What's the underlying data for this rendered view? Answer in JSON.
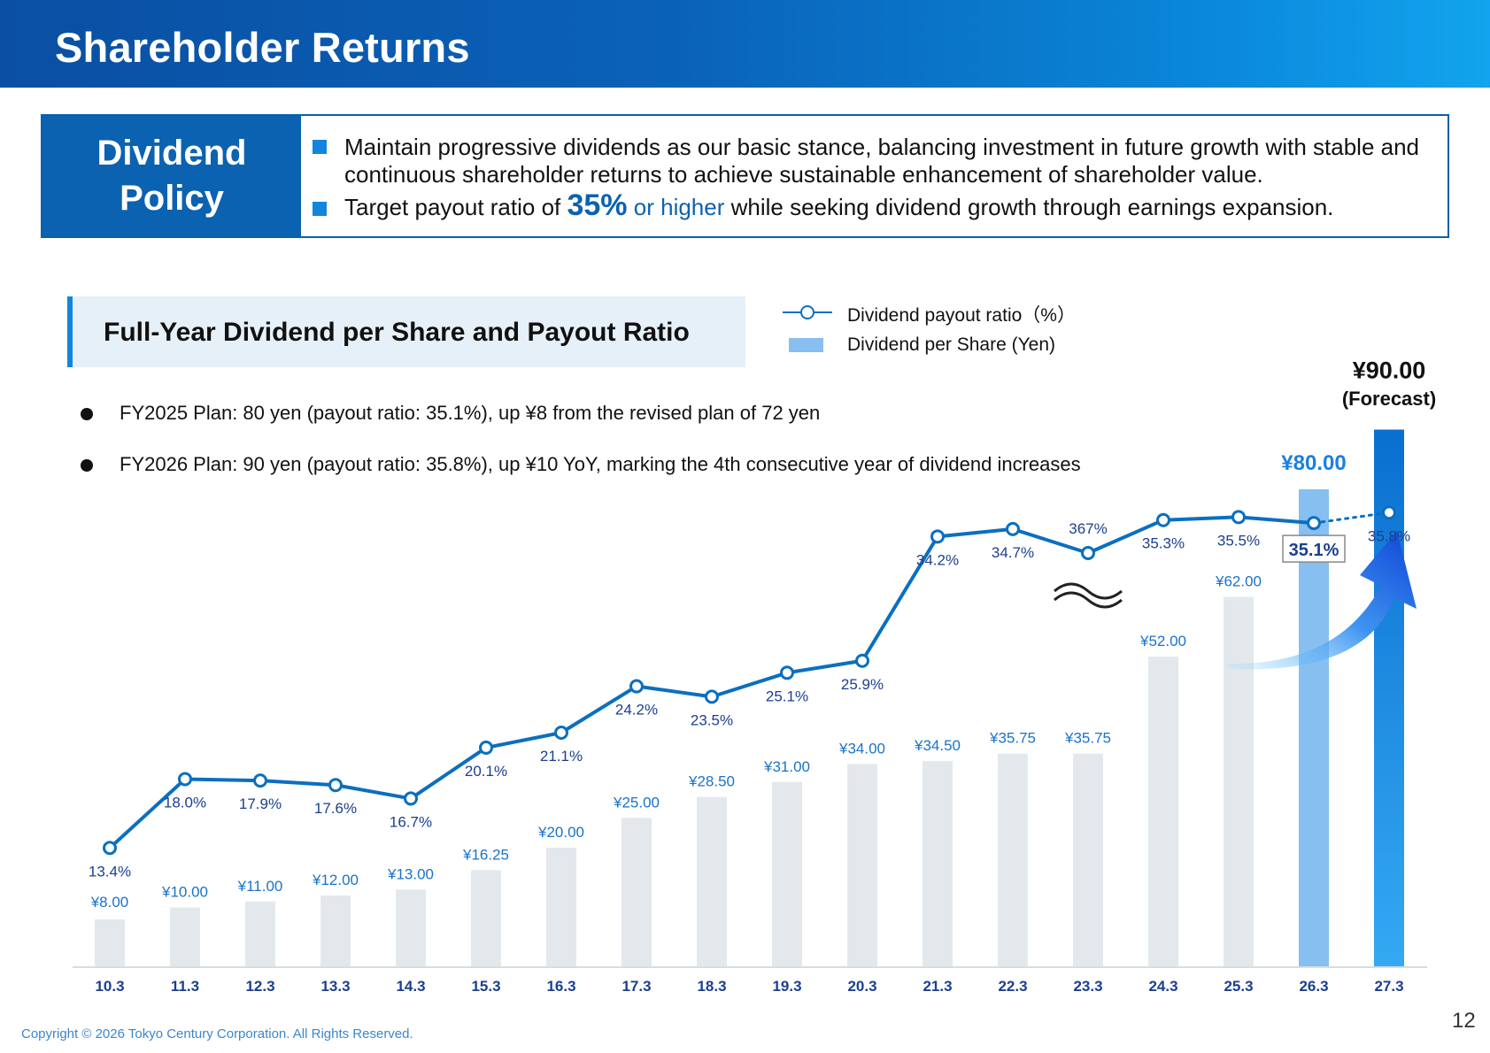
{
  "header": {
    "title": "Shareholder Returns"
  },
  "policy": {
    "label_line1": "Dividend",
    "label_line2": "Policy",
    "line1": "Maintain progressive dividends as our basic stance, balancing investment in future growth with stable and continuous shareholder returns to achieve sustainable enhancement of shareholder value.",
    "line2_pre": "Target payout ratio of ",
    "line2_pct": "35%",
    "line2_mid": " or higher",
    "line2_post": " while seeking dividend growth through earnings expansion."
  },
  "section": {
    "title": "Full-Year Dividend per Share and Payout Ratio"
  },
  "notes": [
    "FY2025 Plan: 80 yen (payout ratio: 35.1%), up ¥8 from the revised plan of 72 yen",
    "FY2026 Plan: 90 yen (payout ratio: 35.8%), up ¥10 YoY, marking the 4th consecutive year of dividend increases"
  ],
  "chart_data": {
    "type": "bar+line",
    "title": "Full-Year Dividend per Share and Payout Ratio",
    "categories": [
      "10.3",
      "11.3",
      "12.3",
      "13.3",
      "14.3",
      "15.3",
      "16.3",
      "17.3",
      "18.3",
      "19.3",
      "20.3",
      "21.3",
      "22.3",
      "23.3",
      "24.3",
      "25.3",
      "26.3",
      "27.3"
    ],
    "series": [
      {
        "name": "Dividend per Share (Yen)",
        "type": "bar",
        "values": [
          8.0,
          10.0,
          11.0,
          12.0,
          13.0,
          16.25,
          20.0,
          25.0,
          28.5,
          31.0,
          34.0,
          34.5,
          35.75,
          35.75,
          52.0,
          62.0,
          80.0,
          90.0
        ],
        "labels": [
          "¥8.00",
          "¥10.00",
          "¥11.00",
          "¥12.00",
          "¥13.00",
          "¥16.25",
          "¥20.00",
          "¥25.00",
          "¥28.50",
          "¥31.00",
          "¥34.00",
          "¥34.50",
          "¥35.75",
          "¥35.75",
          "¥52.00",
          "¥62.00",
          "¥80.00",
          "¥90.00"
        ]
      },
      {
        "name": "Dividend payout ratio（%）",
        "type": "line",
        "values": [
          13.4,
          18.0,
          17.9,
          17.6,
          16.7,
          20.1,
          21.1,
          24.2,
          23.5,
          25.1,
          25.9,
          34.2,
          34.7,
          367,
          35.3,
          35.5,
          35.1,
          35.8
        ],
        "labels": [
          "13.4%",
          "18.0%",
          "17.9%",
          "17.6%",
          "16.7%",
          "20.1%",
          "21.1%",
          "24.2%",
          "23.5%",
          "25.1%",
          "25.9%",
          "34.2%",
          "34.7%",
          "367%",
          "35.3%",
          "35.5%",
          "35.1%",
          "35.8%"
        ]
      }
    ],
    "axis_break_at": "23.3",
    "forecast_label": "(Forecast)",
    "colors": {
      "bar_past": "#e3e8ed",
      "bar_plan": "#86bff0",
      "bar_forecast": "#1a8fe6",
      "line": "#0b6fc0",
      "label_blue": "#1a73c8",
      "label_dark": "#1b3f8f"
    }
  },
  "legend": {
    "line_label": "Dividend payout ratio（%）",
    "bar_label": "Dividend per Share (Yen)"
  },
  "footer": {
    "copyright": "Copyright © 2026 Tokyo Century Corporation. All Rights Reserved.",
    "page": "12"
  }
}
